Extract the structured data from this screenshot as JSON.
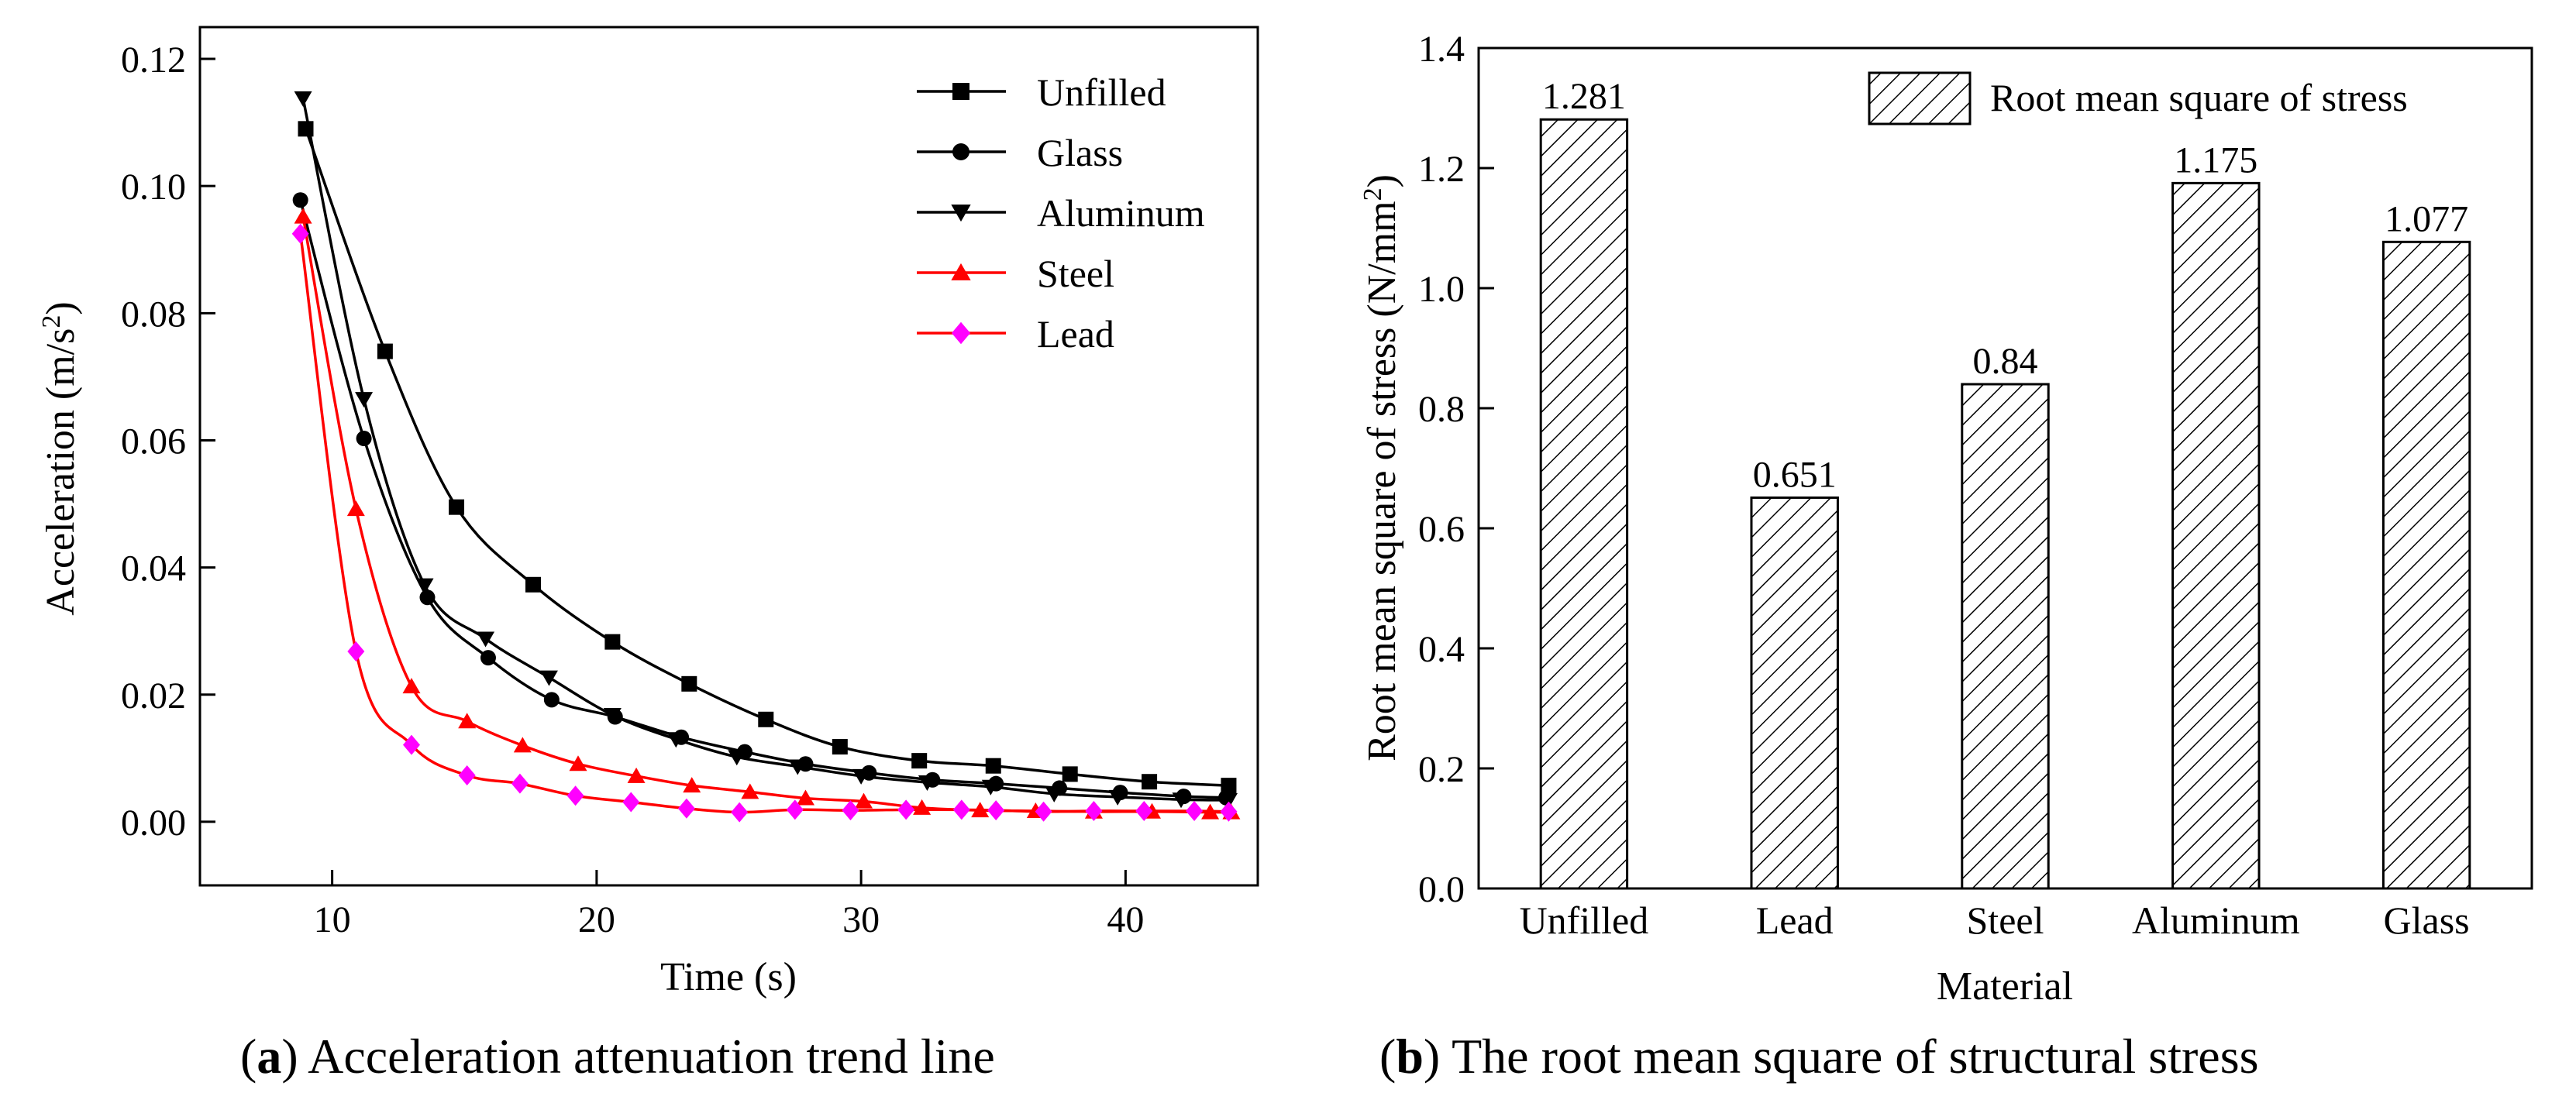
{
  "chart_data": [
    {
      "type": "line",
      "panel_label": "a",
      "caption": "Acceleration attenuation trend line",
      "xlabel": "Time (s)",
      "ylabel_main": "Acceleration (m/s",
      "ylabel_sup": "2",
      "ylabel_end": ")",
      "xlim": [
        5,
        45
      ],
      "ylim": [
        -0.01,
        0.125
      ],
      "xticks": [
        10,
        20,
        30,
        40
      ],
      "yticks": [
        0.0,
        0.02,
        0.04,
        0.06,
        0.08,
        0.1,
        0.12
      ],
      "ytick_labels": [
        "0.00",
        "0.02",
        "0.04",
        "0.06",
        "0.08",
        "0.10",
        "0.12"
      ],
      "legend_position": "top-right",
      "series": [
        {
          "name": "Unfilled",
          "color": "#000000",
          "marker": "square",
          "points": [
            [
              9.0,
              0.109
            ],
            [
              12.0,
              0.074
            ],
            [
              14.7,
              0.0495
            ],
            [
              17.6,
              0.0373
            ],
            [
              20.6,
              0.0283
            ],
            [
              23.5,
              0.0217
            ],
            [
              26.4,
              0.0161
            ],
            [
              29.2,
              0.0118
            ],
            [
              32.2,
              0.0096
            ],
            [
              35.0,
              0.0088
            ],
            [
              37.9,
              0.0075
            ],
            [
              40.9,
              0.0063
            ],
            [
              43.9,
              0.0057
            ]
          ]
        },
        {
          "name": "Glass",
          "color": "#000000",
          "marker": "circle",
          "points": [
            [
              8.8,
              0.0978
            ],
            [
              11.2,
              0.0603
            ],
            [
              13.6,
              0.0353
            ],
            [
              15.9,
              0.0258
            ],
            [
              18.3,
              0.0192
            ],
            [
              20.7,
              0.0165
            ],
            [
              23.2,
              0.0133
            ],
            [
              25.6,
              0.011
            ],
            [
              27.9,
              0.0091
            ],
            [
              30.3,
              0.0077
            ],
            [
              32.7,
              0.0066
            ],
            [
              35.1,
              0.006
            ],
            [
              37.5,
              0.0053
            ],
            [
              39.8,
              0.0046
            ],
            [
              42.2,
              0.004
            ],
            [
              43.8,
              0.0038
            ]
          ]
        },
        {
          "name": "Aluminum",
          "color": "#000000",
          "marker": "triangle-down",
          "points": [
            [
              8.9,
              0.1138
            ],
            [
              11.2,
              0.0665
            ],
            [
              13.5,
              0.0372
            ],
            [
              15.8,
              0.0288
            ],
            [
              18.2,
              0.0227
            ],
            [
              20.6,
              0.0168
            ],
            [
              23.0,
              0.013
            ],
            [
              25.3,
              0.0102
            ],
            [
              27.6,
              0.0087
            ],
            [
              30.0,
              0.0072
            ],
            [
              32.5,
              0.0062
            ],
            [
              34.9,
              0.0055
            ],
            [
              37.3,
              0.0044
            ],
            [
              39.7,
              0.0039
            ],
            [
              42.1,
              0.0035
            ],
            [
              43.9,
              0.0034
            ]
          ]
        },
        {
          "name": "Steel",
          "color": "#ff0000",
          "marker": "triangle-up",
          "points": [
            [
              8.9,
              0.0952
            ],
            [
              10.9,
              0.0492
            ],
            [
              13.0,
              0.0213
            ],
            [
              15.1,
              0.0158
            ],
            [
              17.2,
              0.012
            ],
            [
              19.3,
              0.0091
            ],
            [
              21.5,
              0.0072
            ],
            [
              23.6,
              0.0057
            ],
            [
              25.8,
              0.0047
            ],
            [
              27.9,
              0.0037
            ],
            [
              30.1,
              0.0032
            ],
            [
              32.3,
              0.0022
            ],
            [
              34.5,
              0.0018
            ],
            [
              36.6,
              0.0017
            ],
            [
              38.8,
              0.0016
            ],
            [
              41.0,
              0.0016
            ],
            [
              43.2,
              0.0015
            ],
            [
              44.0,
              0.0015
            ]
          ]
        },
        {
          "name": "Lead",
          "color": "#ff00ff",
          "line_color": "#ff0000",
          "marker": "diamond",
          "points": [
            [
              8.8,
              0.0925
            ],
            [
              10.9,
              0.0268
            ],
            [
              13.0,
              0.0121
            ],
            [
              15.1,
              0.0073
            ],
            [
              17.1,
              0.006
            ],
            [
              19.2,
              0.0041
            ],
            [
              21.3,
              0.0031
            ],
            [
              23.4,
              0.0021
            ],
            [
              25.4,
              0.0015
            ],
            [
              27.5,
              0.0019
            ],
            [
              29.6,
              0.0018
            ],
            [
              31.7,
              0.0019
            ],
            [
              33.8,
              0.0019
            ],
            [
              35.1,
              0.0018
            ],
            [
              36.9,
              0.0016
            ],
            [
              38.8,
              0.0017
            ],
            [
              40.7,
              0.0017
            ],
            [
              42.6,
              0.0017
            ],
            [
              43.9,
              0.0016
            ]
          ]
        }
      ]
    },
    {
      "type": "bar",
      "panel_label": "b",
      "caption": "The root mean square of structural stress",
      "categories": [
        "Unfilled",
        "Lead",
        "Steel",
        "Aluminum",
        "Glass"
      ],
      "values": [
        1.281,
        0.651,
        0.84,
        1.175,
        1.077
      ],
      "value_labels": [
        "1.281",
        "0.651",
        "0.84",
        "1.175",
        "1.077"
      ],
      "xlabel": "Material",
      "ylabel_main": "Root mean square of stress (N/mm",
      "ylabel_sup": "2",
      "ylabel_end": ")",
      "ylim": [
        0,
        1.4
      ],
      "yticks": [
        0.0,
        0.2,
        0.4,
        0.6,
        0.8,
        1.0,
        1.2,
        1.4
      ],
      "ytick_labels": [
        "0.0",
        "0.2",
        "0.4",
        "0.6",
        "0.8",
        "1.0",
        "1.2",
        "1.4"
      ],
      "legend_position": "top-right",
      "legend_label": "Root mean square of stress",
      "fill_pattern": "diagonal-hatch"
    }
  ]
}
